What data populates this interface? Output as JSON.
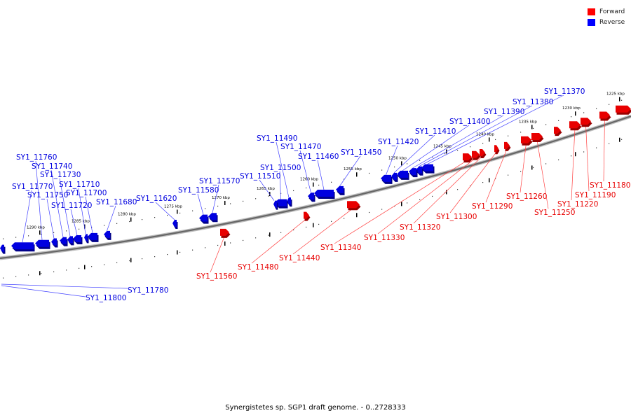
{
  "caption": "Synergistetes sp. SGP1 draft genome. - 0..2728333",
  "legend": [
    {
      "label": "Forward",
      "color": "#ff0000"
    },
    {
      "label": "Reverse",
      "color": "#0000ff"
    }
  ],
  "colors": {
    "forward": "#e80000",
    "reverse": "#0000e0",
    "backbone": "#888888",
    "forward_line": "#ff4040",
    "reverse_line": "#4040ff"
  },
  "scale_labels": [
    "1225 kbp",
    "1230 kbp",
    "1235 kbp",
    "1240 kbp",
    "1245 kbp",
    "1250 kbp",
    "1255 kbp",
    "1260 kbp",
    "1265 kbp",
    "1270 kbp",
    "1275 kbp",
    "1280 kbp",
    "1285 kbp",
    "1290 kbp"
  ],
  "reverse_genes": [
    "SY1_11370",
    "SY1_11380",
    "SY1_11390",
    "SY1_11400",
    "SY1_11410",
    "SY1_11420",
    "SY1_11450",
    "SY1_11460",
    "SY1_11470",
    "SY1_11490",
    "SY1_11500",
    "SY1_11510",
    "SY1_11570",
    "SY1_11580",
    "SY1_11620",
    "SY1_11680",
    "SY1_11700",
    "SY1_11710",
    "SY1_11720",
    "SY1_11730",
    "SY1_11740",
    "SY1_11750",
    "SY1_11760",
    "SY1_11770",
    "SY1_11780",
    "SY1_11800"
  ],
  "forward_genes": [
    "SY1_11180",
    "SY1_11190",
    "SY1_11220",
    "SY1_11250",
    "SY1_11260",
    "SY1_11290",
    "SY1_11300",
    "SY1_11320",
    "SY1_11330",
    "SY1_11340",
    "SY1_11440",
    "SY1_11480",
    "SY1_11560"
  ]
}
